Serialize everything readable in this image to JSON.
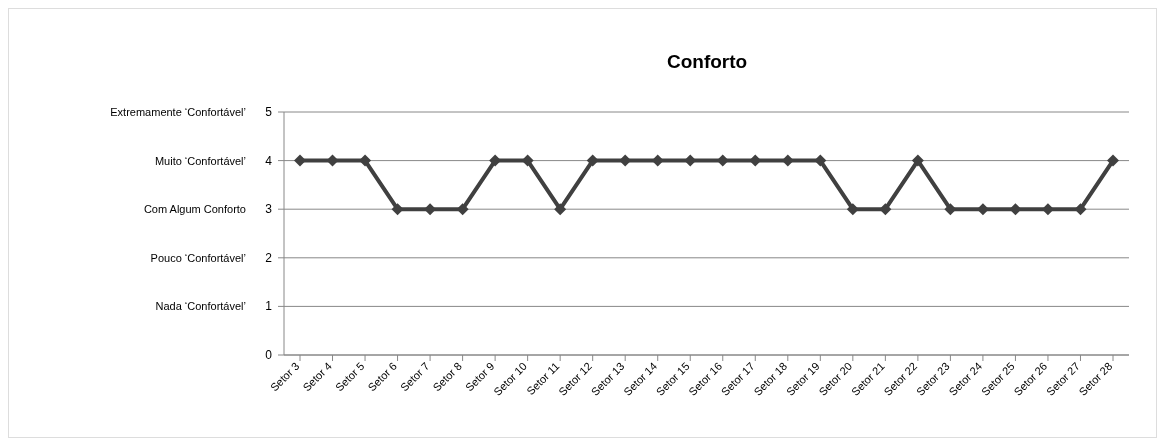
{
  "chart_data": {
    "type": "line",
    "title": "Conforto",
    "categories": [
      "Setor 3",
      "Setor 4",
      "Setor 5",
      "Setor 6",
      "Setor 7",
      "Setor 8",
      "Setor 9",
      "Setor 10",
      "Setor 11",
      "Setor 12",
      "Setor 13",
      "Setor 14",
      "Setor 15",
      "Setor 16",
      "Setor 17",
      "Setor 18",
      "Setor 19",
      "Setor 20",
      "Setor 21",
      "Setor 22",
      "Setor 23",
      "Setor 24",
      "Setor 25",
      "Setor 26",
      "Setor 27",
      "Setor 28"
    ],
    "series": [
      {
        "color": "#404040",
        "values": [
          4,
          4,
          4,
          3,
          3,
          3,
          4,
          4,
          3,
          4,
          4,
          4,
          4,
          4,
          4,
          4,
          4,
          3,
          3,
          4,
          3,
          3,
          3,
          3,
          3,
          4
        ]
      }
    ],
    "ylim": [
      0,
      5
    ],
    "yticks": [
      0,
      1,
      2,
      3,
      4,
      5
    ],
    "grid": "y",
    "marker": "diamond",
    "line_style": "solid",
    "annotations": [
      "Extremamente ‘Confortável’",
      "Muito ‘Confortável’",
      "Com Algum Conforto",
      "Pouco ‘Confortável’",
      "Nada ‘Confortável’"
    ]
  }
}
